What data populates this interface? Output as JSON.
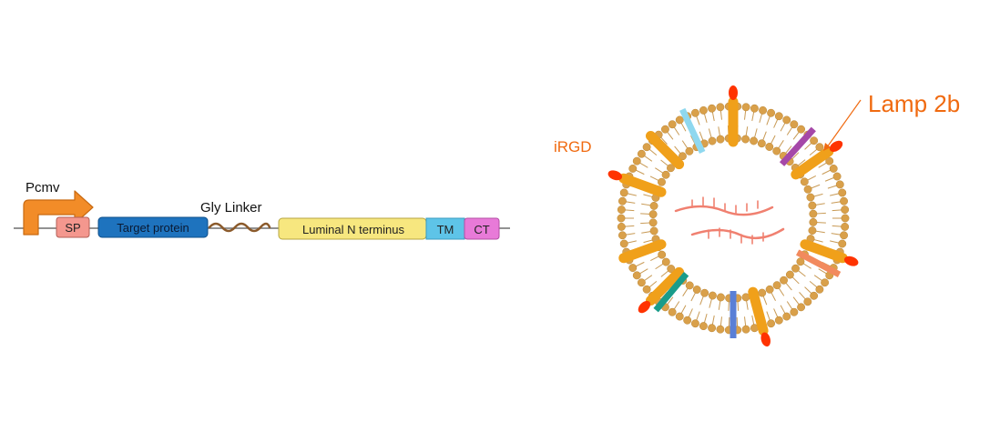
{
  "construct": {
    "promoter_label": "Pcmv",
    "sp_label": "SP",
    "target_label": "Target protein",
    "linker_label": "Gly Linker",
    "luminal_label": "Luminal N terminus",
    "tm_label": "TM",
    "ct_label": "CT"
  },
  "vesicle": {
    "irgd_label": "iRGD",
    "lamp_label": "Lamp 2b"
  },
  "colors": {
    "promoter": "#f28c28",
    "sp": "#f4978e",
    "target": "#1e73be",
    "linker": "#8b5a2b",
    "luminal": "#f7e77f",
    "tm": "#5ec4e8",
    "ct": "#e87ad8",
    "lipid_head": "#d9a04a",
    "lamp": "#f0a01a",
    "irgd": "#ff3300",
    "label_orange": "#f06a10",
    "rna": "#f08070"
  }
}
